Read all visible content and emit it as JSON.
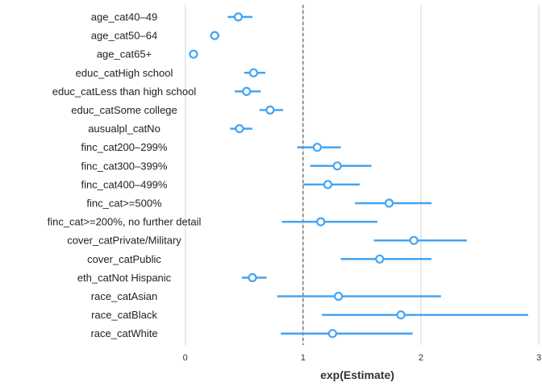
{
  "chart_data": {
    "type": "forest",
    "xlabel": "exp(Estimate)",
    "xlim": [
      -0.08,
      3.0
    ],
    "xticks": [
      0,
      1,
      2,
      3
    ],
    "tick_labels": [
      "0",
      "1",
      "2",
      "3"
    ],
    "reference_line": 1,
    "grid": "vertical major gridlines",
    "colors": {
      "point": "#42a5f5",
      "reference_line": "#444444",
      "grid": "#e3e3e3",
      "text": "#222222"
    },
    "terms": [
      {
        "label": "age_cat40–49",
        "estimate": 0.45,
        "lower": 0.36,
        "upper": 0.57
      },
      {
        "label": "age_cat50–64",
        "estimate": 0.25,
        "lower": 0.21,
        "upper": 0.29
      },
      {
        "label": "age_cat65+",
        "estimate": 0.07,
        "lower": 0.05,
        "upper": 0.09
      },
      {
        "label": "educ_catHigh school",
        "estimate": 0.58,
        "lower": 0.5,
        "upper": 0.68
      },
      {
        "label": "educ_catLess than high school",
        "estimate": 0.52,
        "lower": 0.42,
        "upper": 0.64
      },
      {
        "label": "educ_catSome college",
        "estimate": 0.72,
        "lower": 0.63,
        "upper": 0.83
      },
      {
        "label": "ausualpl_catNo",
        "estimate": 0.46,
        "lower": 0.38,
        "upper": 0.57
      },
      {
        "label": "finc_cat200–299%",
        "estimate": 1.12,
        "lower": 0.95,
        "upper": 1.32
      },
      {
        "label": "finc_cat300–399%",
        "estimate": 1.29,
        "lower": 1.06,
        "upper": 1.58
      },
      {
        "label": "finc_cat400–499%",
        "estimate": 1.21,
        "lower": 1.0,
        "upper": 1.48
      },
      {
        "label": "finc_cat>=500%",
        "estimate": 1.73,
        "lower": 1.44,
        "upper": 2.09
      },
      {
        "label": "finc_cat>=200%, no further detail",
        "estimate": 1.15,
        "lower": 0.82,
        "upper": 1.63
      },
      {
        "label": "cover_catPrivate/Military",
        "estimate": 1.94,
        "lower": 1.6,
        "upper": 2.39
      },
      {
        "label": "cover_catPublic",
        "estimate": 1.65,
        "lower": 1.32,
        "upper": 2.09
      },
      {
        "label": "eth_catNot Hispanic",
        "estimate": 0.57,
        "lower": 0.48,
        "upper": 0.69
      },
      {
        "label": "race_catAsian",
        "estimate": 1.3,
        "lower": 0.78,
        "upper": 2.17
      },
      {
        "label": "race_catBlack",
        "estimate": 1.83,
        "lower": 1.16,
        "upper": 2.91
      },
      {
        "label": "race_catWhite",
        "estimate": 1.25,
        "lower": 0.81,
        "upper": 1.93
      }
    ]
  }
}
